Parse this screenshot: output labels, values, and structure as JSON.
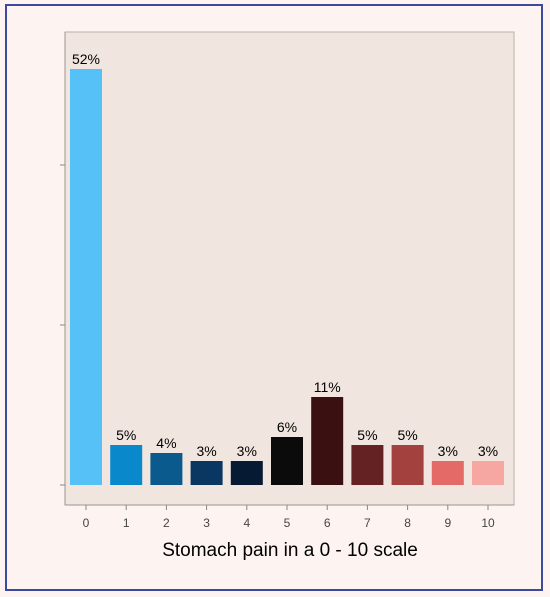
{
  "chart_data": {
    "type": "bar",
    "title": "",
    "xlabel": "Stomach pain in a 0 - 10 scale",
    "ylabel": "",
    "ylim": [
      0,
      60
    ],
    "grid": false,
    "categories": [
      "0",
      "1",
      "2",
      "3",
      "4",
      "5",
      "6",
      "7",
      "8",
      "9",
      "10"
    ],
    "values": [
      52,
      5,
      4,
      3,
      3,
      6,
      11,
      5,
      5,
      3,
      3
    ],
    "data_labels": [
      "52%",
      "5%",
      "4%",
      "3%",
      "3%",
      "6%",
      "11%",
      "5%",
      "5%",
      "3%",
      "3%"
    ],
    "colors": [
      "#56c1f7",
      "#0a88cc",
      "#0b5a8d",
      "#0a3662",
      "#071a33",
      "#0b0b0b",
      "#3a1010",
      "#652222",
      "#a3413e",
      "#e36a66",
      "#f7a7a2"
    ],
    "plot_background": "#f1e6df",
    "frame_color": "#3b4a9a"
  }
}
